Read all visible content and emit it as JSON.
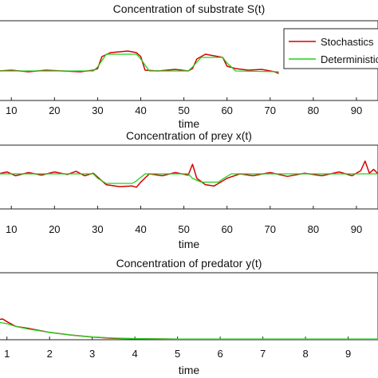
{
  "chart_data": [
    {
      "type": "line",
      "title": "Concentration of substrate S(t)",
      "xlabel": "time",
      "ylabel": "",
      "xlim": [
        7,
        95
      ],
      "ylim": [
        0,
        1
      ],
      "xticks": [
        10,
        20,
        30,
        40,
        50,
        60,
        70,
        80,
        90
      ],
      "legend": {
        "position": "top-right",
        "entries": [
          "Stochastics",
          "Deterministic"
        ]
      },
      "series": [
        {
          "name": "Stochastics",
          "color": "#d40000",
          "x": [
            7,
            10,
            14,
            18,
            22,
            26,
            29,
            30,
            31,
            33,
            35,
            37,
            39,
            40,
            41,
            44,
            48,
            51,
            52,
            53,
            55,
            57,
            59,
            60,
            62,
            65,
            68,
            71,
            72
          ],
          "y": [
            0.37,
            0.38,
            0.36,
            0.38,
            0.37,
            0.36,
            0.38,
            0.4,
            0.55,
            0.6,
            0.61,
            0.62,
            0.6,
            0.55,
            0.38,
            0.37,
            0.39,
            0.37,
            0.4,
            0.52,
            0.58,
            0.56,
            0.54,
            0.43,
            0.4,
            0.38,
            0.39,
            0.36,
            0.34
          ]
        },
        {
          "name": "Deterministic",
          "color": "#1fd11f",
          "x": [
            7,
            29,
            30,
            32,
            39,
            40,
            42,
            51,
            52,
            54,
            59,
            60,
            62,
            72
          ],
          "y": [
            0.37,
            0.37,
            0.42,
            0.58,
            0.58,
            0.52,
            0.37,
            0.37,
            0.42,
            0.54,
            0.54,
            0.47,
            0.37,
            0.36
          ]
        }
      ]
    },
    {
      "type": "line",
      "title": "Concentration of prey x(t)",
      "xlabel": "time",
      "ylabel": "",
      "xlim": [
        7,
        95
      ],
      "ylim": [
        0,
        1
      ],
      "xticks": [
        10,
        20,
        30,
        40,
        50,
        60,
        70,
        80,
        90
      ],
      "series": [
        {
          "name": "Stochastics",
          "color": "#d40000",
          "x": [
            7,
            9,
            11,
            14,
            17,
            20,
            23,
            25,
            27,
            29,
            30,
            32,
            35,
            38,
            39,
            40,
            42,
            45,
            48,
            51,
            52,
            53,
            55,
            57,
            58,
            60,
            63,
            66,
            70,
            74,
            78,
            82,
            86,
            89,
            91,
            92,
            93,
            94,
            95
          ],
          "y": [
            0.55,
            0.58,
            0.52,
            0.57,
            0.53,
            0.58,
            0.54,
            0.59,
            0.52,
            0.56,
            0.5,
            0.38,
            0.35,
            0.36,
            0.34,
            0.42,
            0.55,
            0.52,
            0.57,
            0.53,
            0.7,
            0.48,
            0.38,
            0.36,
            0.4,
            0.48,
            0.55,
            0.52,
            0.57,
            0.51,
            0.56,
            0.52,
            0.58,
            0.52,
            0.6,
            0.75,
            0.56,
            0.62,
            0.55
          ]
        },
        {
          "name": "Deterministic",
          "color": "#1fd11f",
          "x": [
            7,
            29,
            30,
            32,
            38,
            39,
            41,
            51,
            52,
            54,
            58,
            59,
            61,
            95
          ],
          "y": [
            0.55,
            0.55,
            0.48,
            0.4,
            0.4,
            0.44,
            0.55,
            0.55,
            0.48,
            0.42,
            0.42,
            0.47,
            0.55,
            0.55
          ]
        }
      ]
    },
    {
      "type": "line",
      "title": "Concentration of predator y(t)",
      "xlabel": "time",
      "ylabel": "",
      "xlim": [
        0.8,
        9.7
      ],
      "ylim": [
        0,
        1
      ],
      "xticks": [
        1,
        2,
        3,
        4,
        5,
        6,
        7,
        8,
        9
      ],
      "series": [
        {
          "name": "Stochastics",
          "color": "#d40000",
          "x": [
            0.8,
            0.9,
            1.0,
            1.2,
            1.5,
            2.0,
            2.5,
            3.0,
            3.5,
            4.0,
            5.0,
            6.0,
            7.0,
            8.0,
            9.0,
            9.7
          ],
          "y": [
            0.3,
            0.31,
            0.27,
            0.2,
            0.17,
            0.11,
            0.07,
            0.04,
            0.02,
            0.015,
            0.01,
            0.01,
            0.01,
            0.01,
            0.01,
            0.01
          ]
        },
        {
          "name": "Deterministic",
          "color": "#1fd11f",
          "x": [
            0.8,
            1.0,
            1.2,
            1.5,
            2.0,
            2.5,
            3.0,
            3.5,
            4.0,
            5.0,
            6.0,
            7.0,
            8.0,
            9.0,
            9.7
          ],
          "y": [
            0.26,
            0.24,
            0.2,
            0.16,
            0.11,
            0.07,
            0.04,
            0.025,
            0.015,
            0.01,
            0.01,
            0.01,
            0.01,
            0.01,
            0.01
          ]
        }
      ]
    }
  ]
}
